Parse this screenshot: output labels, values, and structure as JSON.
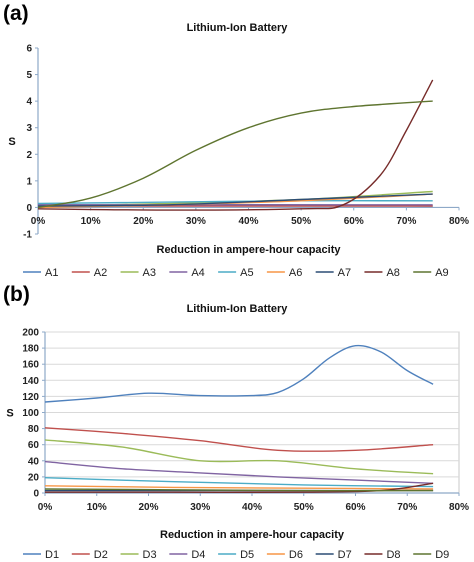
{
  "panels": [
    {
      "label": "(a)"
    },
    {
      "label": "(b)"
    }
  ],
  "chart_data": [
    {
      "type": "line",
      "title": "Lithium-Ion Battery",
      "xlabel": "Reduction in ampere-hour capacity",
      "ylabel": "S",
      "xlim": [
        0,
        80
      ],
      "ylim": [
        -1,
        6
      ],
      "xticks": [
        0,
        10,
        20,
        30,
        40,
        50,
        60,
        70,
        80
      ],
      "xtick_labels": [
        "0%",
        "10%",
        "20%",
        "30%",
        "40%",
        "50%",
        "60%",
        "70%",
        "80%"
      ],
      "yticks": [
        -1,
        0,
        1,
        2,
        3,
        4,
        5,
        6
      ],
      "legend_position": "bottom",
      "series": [
        {
          "name": "A1",
          "color": "#4f81bd",
          "x": [
            0,
            25,
            50,
            75
          ],
          "y": [
            0.1,
            0.1,
            0.1,
            0.05
          ]
        },
        {
          "name": "A2",
          "color": "#c0504d",
          "x": [
            0,
            25,
            50,
            75
          ],
          "y": [
            0.05,
            0.05,
            0.05,
            0.05
          ]
        },
        {
          "name": "A3",
          "color": "#9bbb59",
          "x": [
            0,
            25,
            50,
            75
          ],
          "y": [
            0.05,
            0.15,
            0.3,
            0.6
          ]
        },
        {
          "name": "A4",
          "color": "#8064a2",
          "x": [
            0,
            25,
            50,
            75
          ],
          "y": [
            0.1,
            0.1,
            0.1,
            0.1
          ]
        },
        {
          "name": "A5",
          "color": "#4bacc6",
          "x": [
            0,
            25,
            50,
            75
          ],
          "y": [
            0.15,
            0.2,
            0.25,
            0.25
          ]
        },
        {
          "name": "A6",
          "color": "#f79646",
          "x": [
            0,
            25,
            50,
            75
          ],
          "y": [
            0.0,
            0.1,
            0.25,
            0.5
          ]
        },
        {
          "name": "A7",
          "color": "#2c4d75",
          "x": [
            0,
            25,
            50,
            75
          ],
          "y": [
            0.05,
            0.1,
            0.3,
            0.5
          ]
        },
        {
          "name": "A8",
          "color": "#772c2a",
          "x": [
            0,
            25,
            50,
            58,
            65,
            70,
            75
          ],
          "y": [
            -0.05,
            -0.1,
            -0.05,
            0.1,
            1.2,
            2.9,
            4.8
          ]
        },
        {
          "name": "A9",
          "color": "#5f7530",
          "x": [
            0,
            10,
            20,
            30,
            40,
            50,
            60,
            75
          ],
          "y": [
            0.0,
            0.35,
            1.1,
            2.15,
            3.0,
            3.55,
            3.8,
            4.0
          ]
        }
      ]
    },
    {
      "type": "line",
      "title": "Lithium-Ion Battery",
      "xlabel": "Reduction in ampere-hour capacity",
      "ylabel": "S",
      "xlim": [
        0,
        80
      ],
      "ylim": [
        0,
        200
      ],
      "xticks": [
        0,
        10,
        20,
        30,
        40,
        50,
        60,
        70,
        80
      ],
      "xtick_labels": [
        "0%",
        "10%",
        "20%",
        "30%",
        "40%",
        "50%",
        "60%",
        "70%",
        "80%"
      ],
      "yticks": [
        0,
        20,
        40,
        60,
        80,
        100,
        120,
        140,
        160,
        180,
        200
      ],
      "grid": true,
      "legend_position": "bottom",
      "series": [
        {
          "name": "D1",
          "color": "#4f81bd",
          "x": [
            0,
            10,
            20,
            30,
            40,
            45,
            50,
            55,
            60,
            65,
            70,
            75
          ],
          "y": [
            113,
            118,
            124,
            121,
            121,
            125,
            142,
            168,
            183,
            175,
            152,
            135
          ]
        },
        {
          "name": "D2",
          "color": "#c0504d",
          "x": [
            0,
            15,
            30,
            45,
            60,
            75
          ],
          "y": [
            81,
            74,
            65,
            53,
            53,
            60
          ]
        },
        {
          "name": "D3",
          "color": "#9bbb59",
          "x": [
            0,
            15,
            30,
            45,
            60,
            75
          ],
          "y": [
            66,
            57,
            40,
            40,
            30,
            24
          ]
        },
        {
          "name": "D4",
          "color": "#8064a2",
          "x": [
            0,
            15,
            30,
            45,
            60,
            75
          ],
          "y": [
            39,
            30,
            25,
            20,
            16,
            12
          ]
        },
        {
          "name": "D5",
          "color": "#4bacc6",
          "x": [
            0,
            25,
            50,
            75
          ],
          "y": [
            19,
            14,
            10,
            8
          ]
        },
        {
          "name": "D6",
          "color": "#f79646",
          "x": [
            0,
            25,
            50,
            75
          ],
          "y": [
            9,
            7,
            6,
            5
          ]
        },
        {
          "name": "D7",
          "color": "#2c4d75",
          "x": [
            0,
            25,
            50,
            75
          ],
          "y": [
            3,
            3,
            3,
            3
          ]
        },
        {
          "name": "D8",
          "color": "#772c2a",
          "x": [
            0,
            25,
            50,
            65,
            75
          ],
          "y": [
            1,
            1,
            1,
            3,
            12
          ]
        },
        {
          "name": "D9",
          "color": "#5f7530",
          "x": [
            0,
            25,
            50,
            75
          ],
          "y": [
            5,
            4,
            3,
            3
          ]
        }
      ]
    }
  ]
}
